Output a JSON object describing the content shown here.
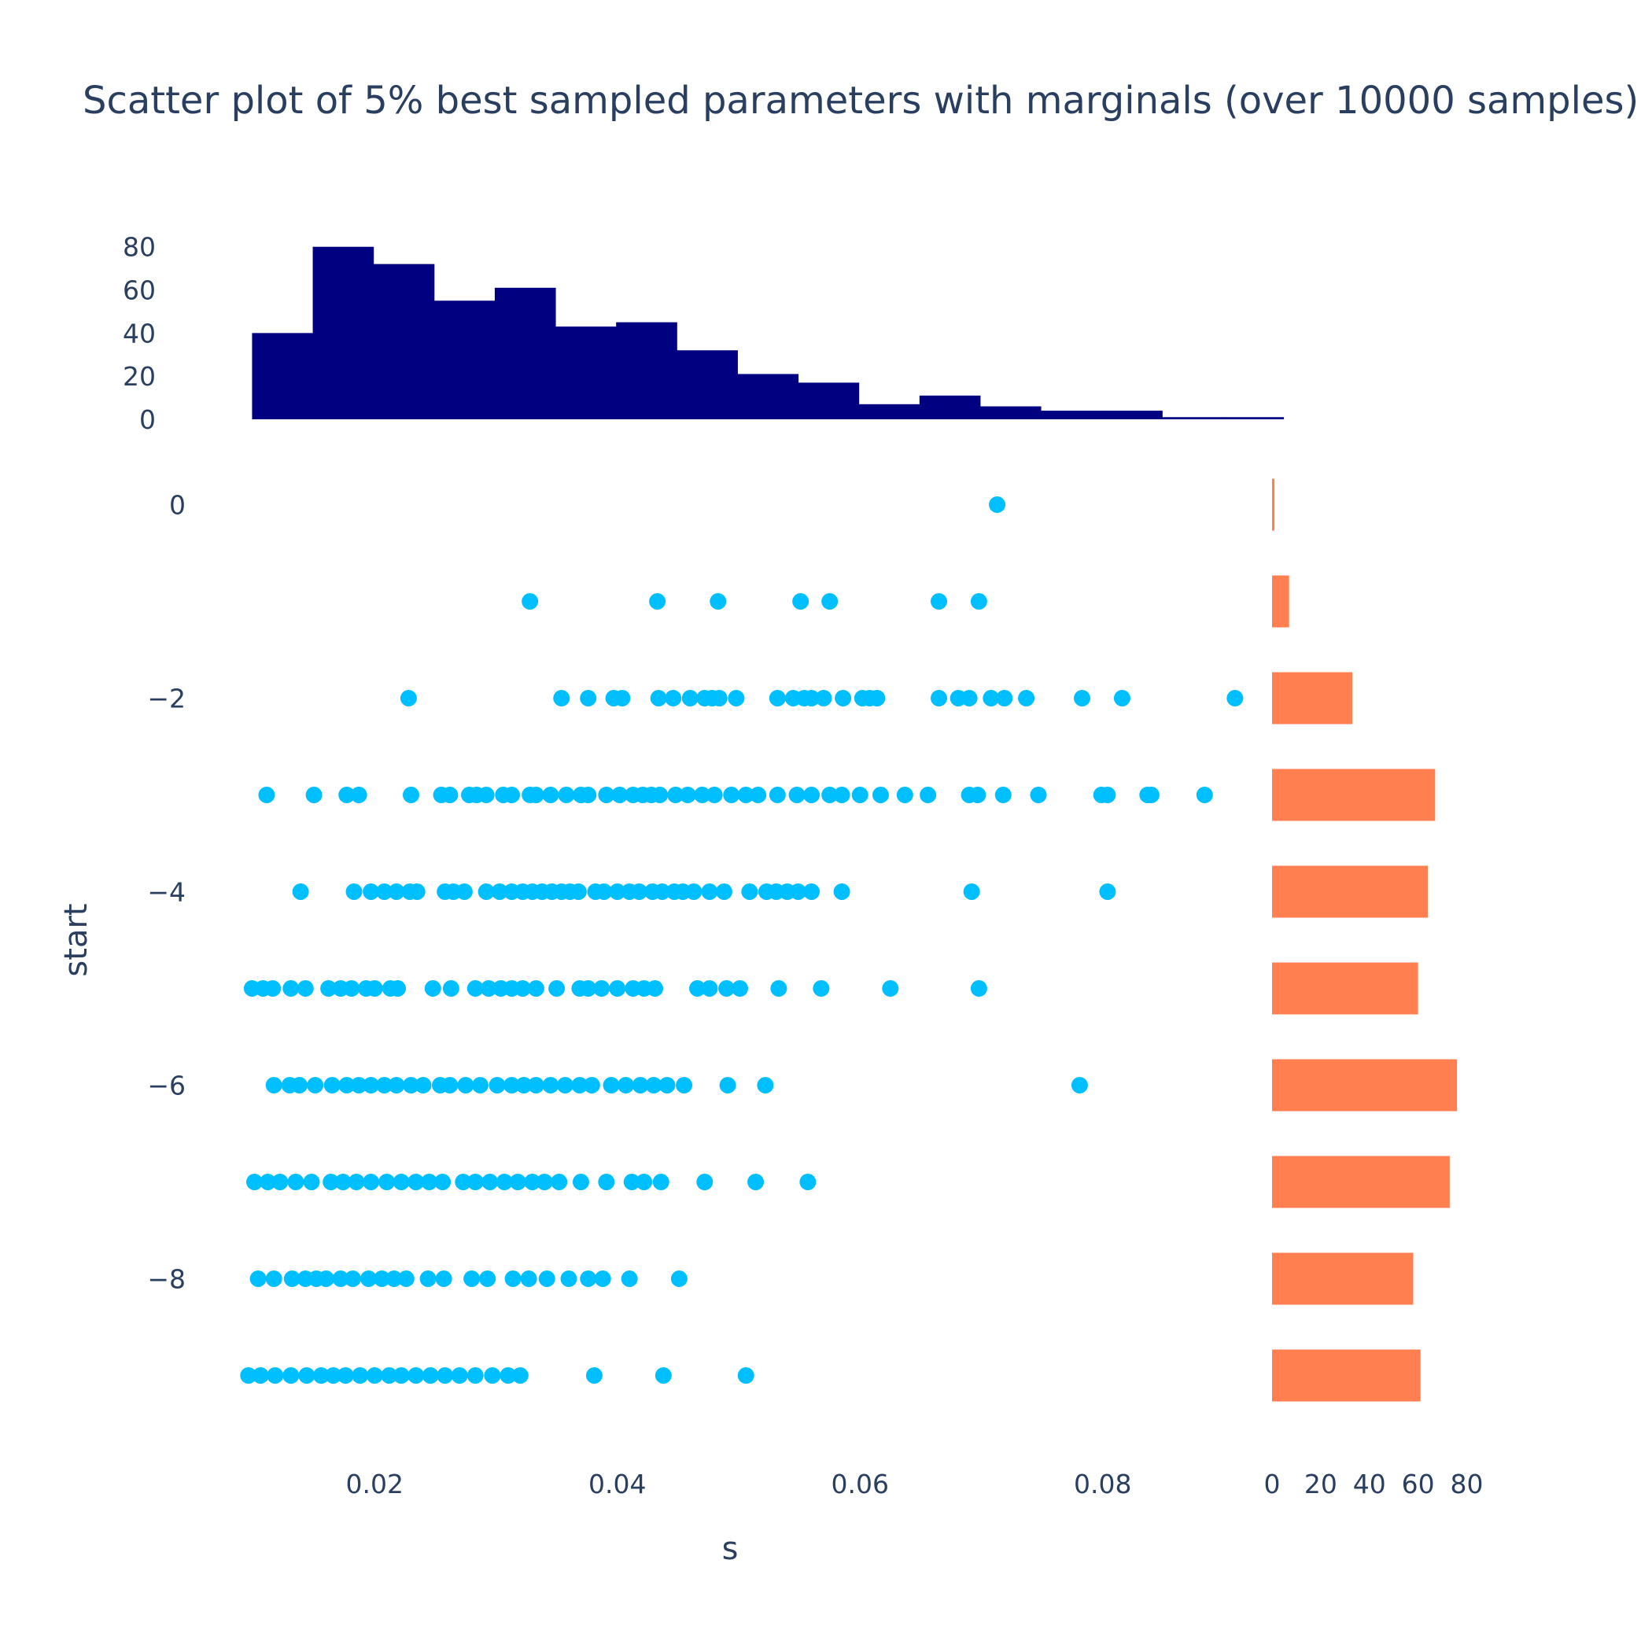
{
  "chart_data": {
    "type": "scatter",
    "title": "Scatter plot of 5% best sampled parameters with marginals (over 10000 samples)",
    "xlabel": "s",
    "ylabel": "start",
    "xlim": [
      0.0089,
      0.0935
    ],
    "ylim": [
      -9.5,
      0.5
    ],
    "x_ticks": [
      0.02,
      0.04,
      0.06,
      0.08
    ],
    "x_tick_labels": [
      "0.02",
      "0.04",
      "0.06",
      "0.08"
    ],
    "y_ticks": [
      0,
      -2,
      -4,
      -6,
      -8
    ],
    "y_tick_labels": [
      "0",
      "−2",
      "−4",
      "−6",
      "−8"
    ],
    "grid": false,
    "legend": false,
    "colors": {
      "scatter": "#00bfff",
      "top_hist": "#000080",
      "right_hist": "#ff7f50",
      "text": "#2a3f5f"
    },
    "scatter": {
      "name": "",
      "points": [
        [
          0.0713,
          0
        ],
        [
          0.0328,
          -1
        ],
        [
          0.0433,
          -1
        ],
        [
          0.0483,
          -1
        ],
        [
          0.0551,
          -1
        ],
        [
          0.0575,
          -1
        ],
        [
          0.0665,
          -1
        ],
        [
          0.0698,
          -1
        ],
        [
          0.0228,
          -2
        ],
        [
          0.0354,
          -2
        ],
        [
          0.0376,
          -2
        ],
        [
          0.0397,
          -2
        ],
        [
          0.0404,
          -2
        ],
        [
          0.0434,
          -2
        ],
        [
          0.0446,
          -2
        ],
        [
          0.046,
          -2
        ],
        [
          0.0472,
          -2
        ],
        [
          0.0478,
          -2
        ],
        [
          0.0484,
          -2
        ],
        [
          0.0498,
          -2
        ],
        [
          0.0532,
          -2
        ],
        [
          0.0545,
          -2
        ],
        [
          0.0554,
          -2
        ],
        [
          0.056,
          -2
        ],
        [
          0.057,
          -2
        ],
        [
          0.0586,
          -2
        ],
        [
          0.0602,
          -2
        ],
        [
          0.0608,
          -2
        ],
        [
          0.0614,
          -2
        ],
        [
          0.0665,
          -2
        ],
        [
          0.0681,
          -2
        ],
        [
          0.069,
          -2
        ],
        [
          0.0708,
          -2
        ],
        [
          0.0719,
          -2
        ],
        [
          0.0737,
          -2
        ],
        [
          0.0783,
          -2
        ],
        [
          0.0816,
          -2
        ],
        [
          0.0909,
          -2
        ],
        [
          0.0111,
          -3
        ],
        [
          0.015,
          -3
        ],
        [
          0.0177,
          -3
        ],
        [
          0.0187,
          -3
        ],
        [
          0.023,
          -3
        ],
        [
          0.0255,
          -3
        ],
        [
          0.0262,
          -3
        ],
        [
          0.0278,
          -3
        ],
        [
          0.0284,
          -3
        ],
        [
          0.0292,
          -3
        ],
        [
          0.0306,
          -3
        ],
        [
          0.0313,
          -3
        ],
        [
          0.0328,
          -3
        ],
        [
          0.0333,
          -3
        ],
        [
          0.0345,
          -3
        ],
        [
          0.0358,
          -3
        ],
        [
          0.037,
          -3
        ],
        [
          0.0376,
          -3
        ],
        [
          0.0391,
          -3
        ],
        [
          0.0402,
          -3
        ],
        [
          0.0413,
          -3
        ],
        [
          0.0421,
          -3
        ],
        [
          0.0428,
          -3
        ],
        [
          0.0435,
          -3
        ],
        [
          0.0448,
          -3
        ],
        [
          0.0458,
          -3
        ],
        [
          0.047,
          -3
        ],
        [
          0.048,
          -3
        ],
        [
          0.0494,
          -3
        ],
        [
          0.0506,
          -3
        ],
        [
          0.0516,
          -3
        ],
        [
          0.0532,
          -3
        ],
        [
          0.0548,
          -3
        ],
        [
          0.056,
          -3
        ],
        [
          0.0575,
          -3
        ],
        [
          0.0585,
          -3
        ],
        [
          0.06,
          -3
        ],
        [
          0.0617,
          -3
        ],
        [
          0.0637,
          -3
        ],
        [
          0.0656,
          -3
        ],
        [
          0.069,
          -3
        ],
        [
          0.0697,
          -3
        ],
        [
          0.0718,
          -3
        ],
        [
          0.0747,
          -3
        ],
        [
          0.0799,
          -3
        ],
        [
          0.0804,
          -3
        ],
        [
          0.0837,
          -3
        ],
        [
          0.084,
          -3
        ],
        [
          0.0884,
          -3
        ],
        [
          0.0139,
          -4
        ],
        [
          0.0183,
          -4
        ],
        [
          0.0197,
          -4
        ],
        [
          0.0208,
          -4
        ],
        [
          0.0218,
          -4
        ],
        [
          0.0229,
          -4
        ],
        [
          0.0235,
          -4
        ],
        [
          0.0258,
          -4
        ],
        [
          0.0265,
          -4
        ],
        [
          0.0274,
          -4
        ],
        [
          0.0292,
          -4
        ],
        [
          0.0303,
          -4
        ],
        [
          0.0313,
          -4
        ],
        [
          0.0322,
          -4
        ],
        [
          0.033,
          -4
        ],
        [
          0.0338,
          -4
        ],
        [
          0.0346,
          -4
        ],
        [
          0.0354,
          -4
        ],
        [
          0.0361,
          -4
        ],
        [
          0.0368,
          -4
        ],
        [
          0.0382,
          -4
        ],
        [
          0.0389,
          -4
        ],
        [
          0.04,
          -4
        ],
        [
          0.041,
          -4
        ],
        [
          0.0418,
          -4
        ],
        [
          0.0429,
          -4
        ],
        [
          0.0437,
          -4
        ],
        [
          0.0447,
          -4
        ],
        [
          0.0454,
          -4
        ],
        [
          0.0463,
          -4
        ],
        [
          0.0476,
          -4
        ],
        [
          0.0488,
          -4
        ],
        [
          0.0509,
          -4
        ],
        [
          0.0523,
          -4
        ],
        [
          0.0531,
          -4
        ],
        [
          0.054,
          -4
        ],
        [
          0.0549,
          -4
        ],
        [
          0.056,
          -4
        ],
        [
          0.0585,
          -4
        ],
        [
          0.0692,
          -4
        ],
        [
          0.0804,
          -4
        ],
        [
          0.0099,
          -5
        ],
        [
          0.0108,
          -5
        ],
        [
          0.0116,
          -5
        ],
        [
          0.0131,
          -5
        ],
        [
          0.0143,
          -5
        ],
        [
          0.0162,
          -5
        ],
        [
          0.0172,
          -5
        ],
        [
          0.0181,
          -5
        ],
        [
          0.0193,
          -5
        ],
        [
          0.02,
          -5
        ],
        [
          0.0213,
          -5
        ],
        [
          0.0219,
          -5
        ],
        [
          0.0248,
          -5
        ],
        [
          0.0263,
          -5
        ],
        [
          0.0283,
          -5
        ],
        [
          0.0294,
          -5
        ],
        [
          0.0304,
          -5
        ],
        [
          0.0313,
          -5
        ],
        [
          0.0322,
          -5
        ],
        [
          0.0333,
          -5
        ],
        [
          0.035,
          -5
        ],
        [
          0.0369,
          -5
        ],
        [
          0.0376,
          -5
        ],
        [
          0.0387,
          -5
        ],
        [
          0.04,
          -5
        ],
        [
          0.0413,
          -5
        ],
        [
          0.0422,
          -5
        ],
        [
          0.0431,
          -5
        ],
        [
          0.0466,
          -5
        ],
        [
          0.0476,
          -5
        ],
        [
          0.049,
          -5
        ],
        [
          0.0501,
          -5
        ],
        [
          0.0533,
          -5
        ],
        [
          0.0568,
          -5
        ],
        [
          0.0625,
          -5
        ],
        [
          0.0698,
          -5
        ],
        [
          0.0117,
          -6
        ],
        [
          0.013,
          -6
        ],
        [
          0.0138,
          -6
        ],
        [
          0.0151,
          -6
        ],
        [
          0.0165,
          -6
        ],
        [
          0.0177,
          -6
        ],
        [
          0.0187,
          -6
        ],
        [
          0.0197,
          -6
        ],
        [
          0.0208,
          -6
        ],
        [
          0.0218,
          -6
        ],
        [
          0.023,
          -6
        ],
        [
          0.024,
          -6
        ],
        [
          0.0254,
          -6
        ],
        [
          0.0262,
          -6
        ],
        [
          0.0275,
          -6
        ],
        [
          0.0287,
          -6
        ],
        [
          0.0301,
          -6
        ],
        [
          0.0313,
          -6
        ],
        [
          0.0323,
          -6
        ],
        [
          0.0333,
          -6
        ],
        [
          0.0345,
          -6
        ],
        [
          0.0357,
          -6
        ],
        [
          0.0369,
          -6
        ],
        [
          0.0379,
          -6
        ],
        [
          0.0395,
          -6
        ],
        [
          0.0407,
          -6
        ],
        [
          0.0419,
          -6
        ],
        [
          0.043,
          -6
        ],
        [
          0.0441,
          -6
        ],
        [
          0.0455,
          -6
        ],
        [
          0.0491,
          -6
        ],
        [
          0.0522,
          -6
        ],
        [
          0.0781,
          -6
        ],
        [
          0.0101,
          -7
        ],
        [
          0.0112,
          -7
        ],
        [
          0.0122,
          -7
        ],
        [
          0.0135,
          -7
        ],
        [
          0.0148,
          -7
        ],
        [
          0.0164,
          -7
        ],
        [
          0.0174,
          -7
        ],
        [
          0.0185,
          -7
        ],
        [
          0.0197,
          -7
        ],
        [
          0.021,
          -7
        ],
        [
          0.0222,
          -7
        ],
        [
          0.0234,
          -7
        ],
        [
          0.0245,
          -7
        ],
        [
          0.0256,
          -7
        ],
        [
          0.0273,
          -7
        ],
        [
          0.0283,
          -7
        ],
        [
          0.0295,
          -7
        ],
        [
          0.0307,
          -7
        ],
        [
          0.0318,
          -7
        ],
        [
          0.033,
          -7
        ],
        [
          0.034,
          -7
        ],
        [
          0.0352,
          -7
        ],
        [
          0.037,
          -7
        ],
        [
          0.0391,
          -7
        ],
        [
          0.0412,
          -7
        ],
        [
          0.0422,
          -7
        ],
        [
          0.0436,
          -7
        ],
        [
          0.0472,
          -7
        ],
        [
          0.0514,
          -7
        ],
        [
          0.0557,
          -7
        ],
        [
          0.0104,
          -8
        ],
        [
          0.0117,
          -8
        ],
        [
          0.0132,
          -8
        ],
        [
          0.0143,
          -8
        ],
        [
          0.0152,
          -8
        ],
        [
          0.016,
          -8
        ],
        [
          0.0172,
          -8
        ],
        [
          0.0182,
          -8
        ],
        [
          0.0195,
          -8
        ],
        [
          0.0206,
          -8
        ],
        [
          0.0216,
          -8
        ],
        [
          0.0226,
          -8
        ],
        [
          0.0244,
          -8
        ],
        [
          0.0257,
          -8
        ],
        [
          0.028,
          -8
        ],
        [
          0.0293,
          -8
        ],
        [
          0.0314,
          -8
        ],
        [
          0.0327,
          -8
        ],
        [
          0.0342,
          -8
        ],
        [
          0.036,
          -8
        ],
        [
          0.0376,
          -8
        ],
        [
          0.0388,
          -8
        ],
        [
          0.041,
          -8
        ],
        [
          0.0451,
          -8
        ],
        [
          0.0096,
          -9
        ],
        [
          0.0106,
          -9
        ],
        [
          0.0118,
          -9
        ],
        [
          0.0131,
          -9
        ],
        [
          0.0144,
          -9
        ],
        [
          0.0156,
          -9
        ],
        [
          0.0166,
          -9
        ],
        [
          0.0176,
          -9
        ],
        [
          0.0188,
          -9
        ],
        [
          0.02,
          -9
        ],
        [
          0.0212,
          -9
        ],
        [
          0.0222,
          -9
        ],
        [
          0.0234,
          -9
        ],
        [
          0.0246,
          -9
        ],
        [
          0.0258,
          -9
        ],
        [
          0.027,
          -9
        ],
        [
          0.0283,
          -9
        ],
        [
          0.0297,
          -9
        ],
        [
          0.031,
          -9
        ],
        [
          0.032,
          -9
        ],
        [
          0.0381,
          -9
        ],
        [
          0.0438,
          -9
        ],
        [
          0.0506,
          -9
        ]
      ]
    },
    "top_histogram": {
      "type": "bar",
      "bins": [
        {
          "x0": 0.0099,
          "x1": 0.0149,
          "count": 40
        },
        {
          "x0": 0.0149,
          "x1": 0.0199,
          "count": 80
        },
        {
          "x0": 0.0199,
          "x1": 0.0249,
          "count": 72
        },
        {
          "x0": 0.0249,
          "x1": 0.0299,
          "count": 55
        },
        {
          "x0": 0.0299,
          "x1": 0.0349,
          "count": 61
        },
        {
          "x0": 0.0349,
          "x1": 0.0399,
          "count": 43
        },
        {
          "x0": 0.0399,
          "x1": 0.0449,
          "count": 45
        },
        {
          "x0": 0.0449,
          "x1": 0.0499,
          "count": 32
        },
        {
          "x0": 0.0499,
          "x1": 0.0549,
          "count": 21
        },
        {
          "x0": 0.0549,
          "x1": 0.0599,
          "count": 17
        },
        {
          "x0": 0.0599,
          "x1": 0.0649,
          "count": 7
        },
        {
          "x0": 0.0649,
          "x1": 0.0699,
          "count": 11
        },
        {
          "x0": 0.0699,
          "x1": 0.0749,
          "count": 6
        },
        {
          "x0": 0.0749,
          "x1": 0.0799,
          "count": 4
        },
        {
          "x0": 0.0799,
          "x1": 0.0849,
          "count": 4
        },
        {
          "x0": 0.0849,
          "x1": 0.0899,
          "count": 1
        },
        {
          "x0": 0.0899,
          "x1": 0.0949,
          "count": 1
        }
      ],
      "ylim": [
        0,
        85
      ],
      "y_ticks": [
        0,
        20,
        40,
        60,
        80
      ],
      "y_tick_labels": [
        "0",
        "20",
        "40",
        "60",
        "80"
      ]
    },
    "right_histogram": {
      "type": "bar",
      "orientation": "horizontal",
      "categories": [
        0,
        -1,
        -2,
        -3,
        -4,
        -5,
        -6,
        -7,
        -8,
        -9
      ],
      "values": [
        1,
        7,
        33,
        67,
        64,
        60,
        76,
        73,
        58,
        61
      ],
      "xlim": [
        0,
        85
      ],
      "x_ticks": [
        0,
        20,
        40,
        60,
        80
      ],
      "x_tick_labels": [
        "0",
        "20",
        "40",
        "60",
        "80"
      ]
    }
  }
}
